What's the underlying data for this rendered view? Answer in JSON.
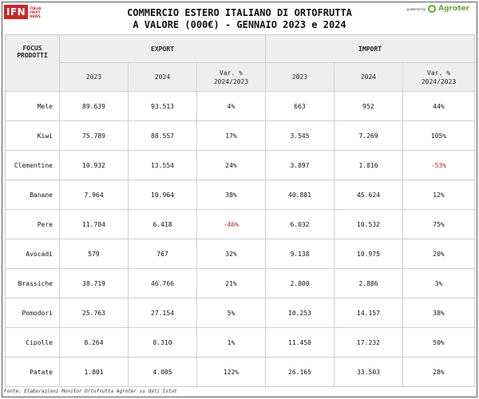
{
  "logo": {
    "text": "IFN",
    "sub": [
      "ITALIA",
      "FRUIT",
      "NEWS"
    ]
  },
  "title_line1": "COMMERCIO ESTERO ITALIANO DI ORTOFRUTTA",
  "title_line2": "A VALORE (000€) - GENNAIO 2023 e 2024",
  "powered": {
    "label": "powered by",
    "brand": "Agroter"
  },
  "table": {
    "focus_header": "FOCUS PRODOTTI",
    "export_header": "EXPORT",
    "import_header": "IMPORT",
    "col_2023": "2023",
    "col_2024": "2024",
    "col_var_line1": "Var. %",
    "col_var_line2": "2024/2023",
    "negative_color": "#b71c1c",
    "rows": [
      {
        "name": "Mele",
        "exp2023": "89.639",
        "exp2024": "93.513",
        "expvar": "4%",
        "imp2023": "663",
        "imp2024": "952",
        "impvar": "44%"
      },
      {
        "name": "Kiwi",
        "exp2023": "75.789",
        "exp2024": "88.557",
        "expvar": "17%",
        "imp2023": "3.545",
        "imp2024": "7.269",
        "impvar": "105%"
      },
      {
        "name": "Clementine",
        "exp2023": "10.932",
        "exp2024": "13.554",
        "expvar": "24%",
        "imp2023": "3.897",
        "imp2024": "1.816",
        "impvar": "-53%"
      },
      {
        "name": "Banane",
        "exp2023": "7.964",
        "exp2024": "10.964",
        "expvar": "38%",
        "imp2023": "40.881",
        "imp2024": "45.624",
        "impvar": "12%"
      },
      {
        "name": "Pere",
        "exp2023": "11.784",
        "exp2024": "6.418",
        "expvar": "-46%",
        "imp2023": "6.032",
        "imp2024": "10.532",
        "impvar": "75%"
      },
      {
        "name": "Avocadi",
        "exp2023": "579",
        "exp2024": "767",
        "expvar": "32%",
        "imp2023": "9.138",
        "imp2024": "10.975",
        "impvar": "20%"
      },
      {
        "name": "Brassiche",
        "exp2023": "38.719",
        "exp2024": "46.766",
        "expvar": "21%",
        "imp2023": "2.800",
        "imp2024": "2.886",
        "impvar": "3%"
      },
      {
        "name": "Pomodori",
        "exp2023": "25.763",
        "exp2024": "27.154",
        "expvar": "5%",
        "imp2023": "10.253",
        "imp2024": "14.157",
        "impvar": "38%"
      },
      {
        "name": "Cipolle",
        "exp2023": "8.264",
        "exp2024": "8.310",
        "expvar": "1%",
        "imp2023": "11.458",
        "imp2024": "17.232",
        "impvar": "50%"
      },
      {
        "name": "Patate",
        "exp2023": "1.801",
        "exp2024": "4.005",
        "expvar": "122%",
        "imp2023": "26.165",
        "imp2024": "33.503",
        "impvar": "28%"
      }
    ]
  },
  "footer": "Fonte: Elaborazioni Monitor Ortofrutta Agroter su dati Istat"
}
